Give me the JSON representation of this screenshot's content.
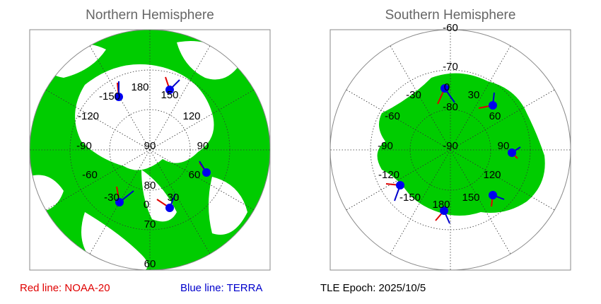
{
  "panels": [
    {
      "title": "Northern Hemisphere",
      "labels": [
        "180",
        "-150",
        "150",
        "-120",
        "120",
        "-90",
        "90",
        "90",
        "-60",
        "60",
        "80",
        "-30",
        "30",
        "0",
        "70",
        "60"
      ]
    },
    {
      "title": "Southern Hemisphere",
      "labels": [
        "-60",
        "-70",
        "-30",
        "0",
        "30",
        "-80",
        "-60",
        "60",
        "-90",
        "-90",
        "90",
        "-120",
        "120",
        "-150",
        "150",
        "180"
      ]
    }
  ],
  "legend": {
    "red": "Red line: NOAA-20",
    "blue": "Blue line: TERRA",
    "epoch": "TLE Epoch: 2025/10/5"
  }
}
